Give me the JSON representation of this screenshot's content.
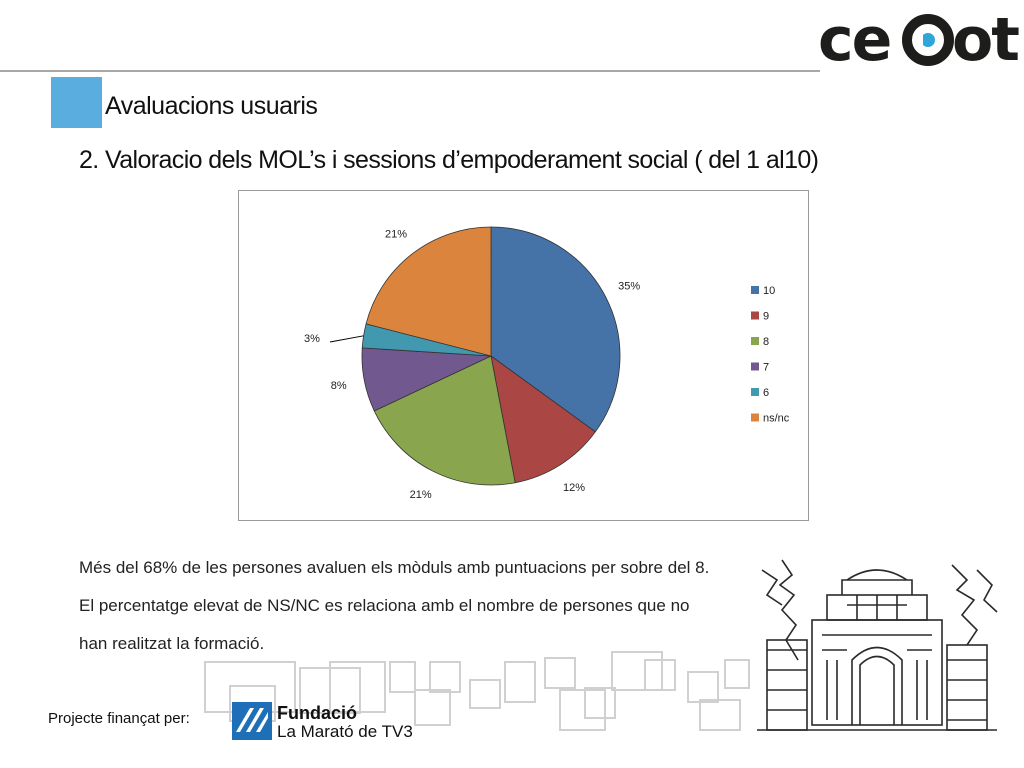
{
  "brand": {
    "logo_text": "cecot",
    "primary": "#1d1d1b",
    "accent": "#2fa5d8"
  },
  "section_title": "Avaluacions usuaris",
  "slide_heading": "2. Valoracio dels MOL’s i sessions d’empoderament social ( del 1 al10)",
  "chart_data": {
    "type": "pie",
    "slices": [
      {
        "label": "10",
        "value": 35,
        "data_label": "35%",
        "color": "#4572a7"
      },
      {
        "label": "9",
        "value": 12,
        "data_label": "12%",
        "color": "#aa4643"
      },
      {
        "label": "8",
        "value": 21,
        "data_label": "21%",
        "color": "#89a54e"
      },
      {
        "label": "7",
        "value": 8,
        "data_label": "8%",
        "color": "#71588f"
      },
      {
        "label": "6",
        "value": 3,
        "data_label": "3%",
        "color": "#4198af"
      },
      {
        "label": "ns/nc",
        "value": 21,
        "data_label": "21%",
        "color": "#db843d"
      }
    ],
    "legend_position": "right"
  },
  "body_text": [
    "Més del 68% de les persones avaluen els mòduls amb puntuacions per sobre del 8.",
    "El percentatge elevat de NS/NC es relaciona amb el nombre de persones que no",
    "han realitzat la formació."
  ],
  "footer": {
    "funded_label": "Projecte finançat per:",
    "funder_name": "Fundació",
    "funder_sub": "La Marató de TV3"
  }
}
